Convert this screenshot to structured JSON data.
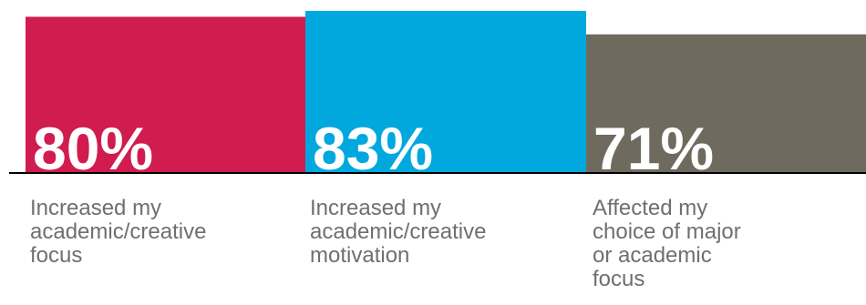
{
  "chart_data": {
    "type": "bar",
    "categories": [
      "Increased my\nacademic/creative\nfocus",
      "Increased my\nacademic/creative\nmotivation",
      "Affected my\nchoice of major\nor academic\nfocus"
    ],
    "values": [
      80,
      83,
      71
    ],
    "value_labels": [
      "80%",
      "83%",
      "71%"
    ],
    "colors": [
      "#d01c4f",
      "#00a8de",
      "#6e6b5e"
    ],
    "ylim": [
      0,
      83
    ],
    "grid": false,
    "legend": "none"
  }
}
